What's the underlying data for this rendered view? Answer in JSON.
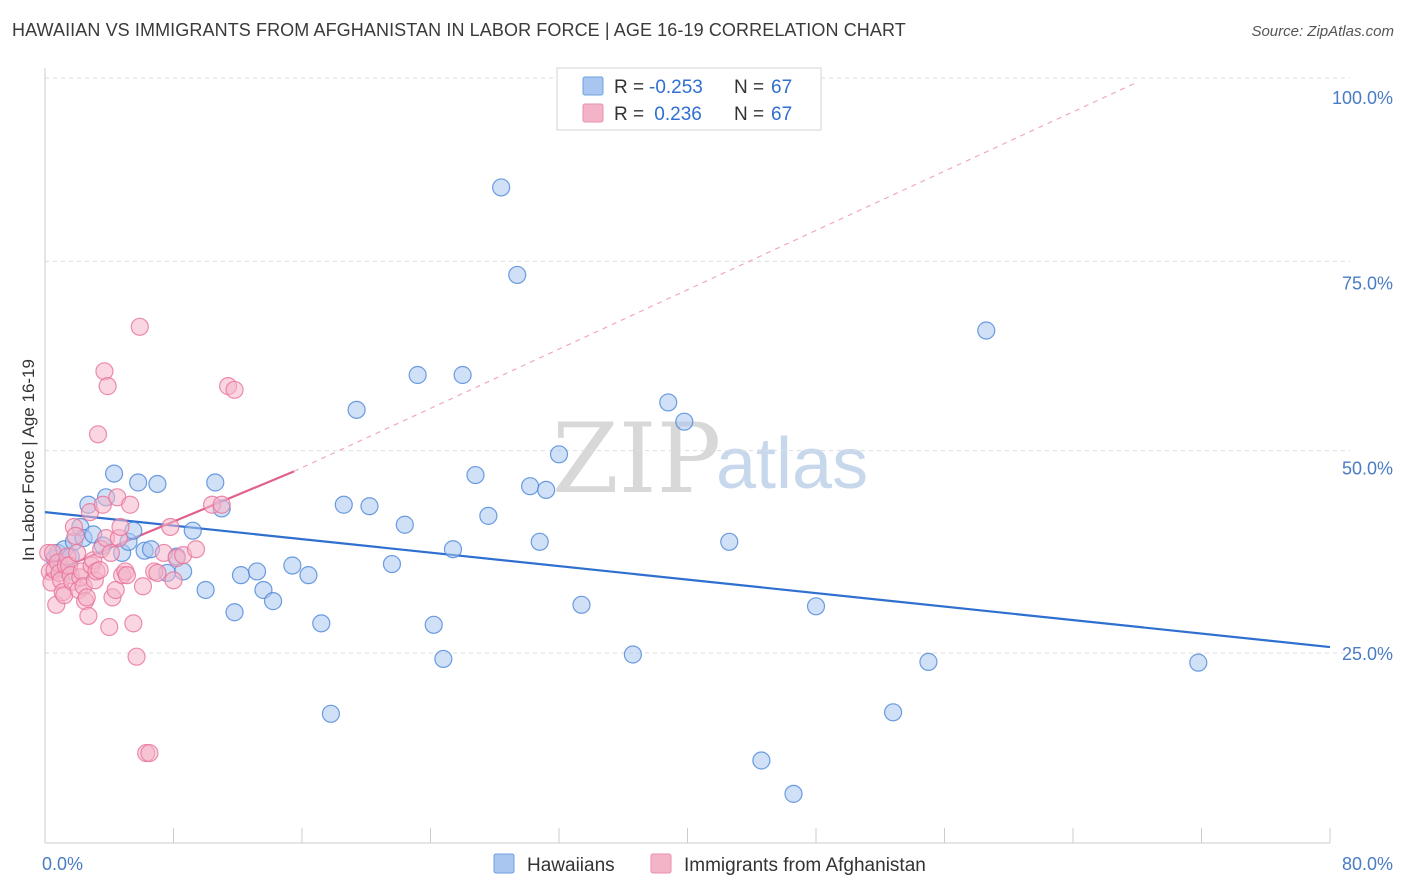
{
  "title": "HAWAIIAN VS IMMIGRANTS FROM AFGHANISTAN IN LABOR FORCE | AGE 16-19 CORRELATION CHART",
  "source": "Source: ZipAtlas.com",
  "watermark": {
    "zip": "ZIP",
    "atlas": "atlas"
  },
  "legend_top": {
    "rows": [
      {
        "r_label": "R = ",
        "r_value": "-0.253",
        "n_label": "N = ",
        "n_value": "67",
        "color": "#a9c6f0"
      },
      {
        "r_label": "R = ",
        "r_value": " 0.236",
        "n_label": "N = ",
        "n_value": "67",
        "color": "#f4b4c8"
      }
    ]
  },
  "legend_bottom": [
    {
      "label": "Hawaiians",
      "color": "#a9c6f0"
    },
    {
      "label": "Immigrants from Afghanistan",
      "color": "#f4b4c8"
    }
  ],
  "chart_data": {
    "type": "scatter",
    "title": "HAWAIIAN VS IMMIGRANTS FROM AFGHANISTAN IN LABOR FORCE | AGE 16-19 CORRELATION CHART",
    "xlabel": "",
    "ylabel": "In Labor Force | Age 16-19",
    "xlim": [
      0,
      80
    ],
    "ylim": [
      0,
      105
    ],
    "x_tick_labels": [
      "0.0%",
      "80.0%"
    ],
    "y_ticks": [
      25,
      50,
      75,
      100
    ],
    "y_tick_labels": [
      "25.0%",
      "50.0%",
      "75.0%",
      "100.0%"
    ],
    "grid": true,
    "legend_position": "top-center",
    "series": [
      {
        "name": "Hawaiians",
        "color": "#4a86d8",
        "fill": "#a9c6f0",
        "trend": {
          "x": [
            0,
            80
          ],
          "y": [
            44.0,
            25.8
          ],
          "style": "solid",
          "color": "#2f6fd0"
        },
        "x": [
          0.6,
          0.8,
          1.0,
          1.2,
          1.4,
          1.6,
          1.8,
          2.2,
          2.4,
          2.7,
          3.0,
          3.6,
          3.8,
          4.3,
          4.8,
          5.2,
          5.5,
          5.8,
          6.2,
          6.6,
          7.0,
          7.6,
          8.2,
          8.6,
          9.2,
          10.0,
          10.6,
          11.0,
          11.8,
          12.2,
          13.2,
          13.6,
          14.2,
          15.4,
          16.4,
          17.2,
          17.8,
          18.6,
          19.4,
          20.2,
          21.6,
          22.4,
          23.2,
          24.2,
          24.8,
          25.4,
          26.0,
          26.8,
          27.6,
          28.4,
          29.4,
          30.2,
          30.8,
          31.2,
          32.0,
          33.4,
          36.6,
          38.8,
          39.8,
          42.6,
          44.6,
          46.6,
          48.0,
          52.8,
          55.0,
          58.6,
          71.8
        ],
        "y": [
          37.8,
          38.5,
          36.5,
          39.0,
          36.0,
          38.0,
          40.0,
          42.0,
          40.5,
          45.0,
          41.0,
          39.5,
          46.0,
          49.2,
          38.5,
          40.0,
          41.5,
          48.0,
          38.8,
          39.0,
          47.8,
          35.8,
          38.0,
          36.0,
          41.5,
          33.5,
          48.0,
          44.5,
          30.5,
          35.5,
          36.0,
          33.5,
          32.0,
          36.8,
          35.5,
          29.0,
          16.8,
          45.0,
          57.8,
          44.8,
          37.0,
          42.3,
          62.5,
          28.8,
          24.2,
          39.0,
          62.5,
          49.0,
          43.5,
          87.8,
          76.0,
          47.5,
          40.0,
          47.0,
          51.8,
          31.5,
          24.8,
          58.8,
          56.2,
          40.0,
          10.5,
          6.0,
          31.3,
          17.0,
          23.8,
          68.5,
          23.7
        ],
        "x_override": [
          0.6,
          0.8,
          1.0,
          1.2,
          1.4,
          1.6,
          1.8,
          2.2,
          2.4,
          2.7,
          3.0,
          3.6,
          3.8,
          4.3,
          4.8,
          5.2,
          5.5,
          5.8,
          6.2,
          6.6,
          7.0,
          7.6,
          8.2,
          8.6,
          9.2,
          10.0,
          10.6,
          11.0,
          11.8,
          12.2,
          13.2,
          13.6,
          14.2,
          15.4,
          16.4,
          17.2,
          17.8,
          18.6,
          19.4,
          20.2,
          21.6,
          22.4,
          23.2,
          24.2,
          24.8,
          25.4,
          26.0,
          26.8,
          27.6,
          28.4,
          29.4,
          30.2,
          30.8,
          31.2,
          32.0,
          33.4,
          36.6,
          38.8,
          39.8,
          42.6,
          44.6,
          46.6,
          48.0,
          52.8,
          55.0,
          58.6,
          71.8
        ]
      },
      {
        "name": "Immigrants from Afghanistan",
        "color": "#e8729a",
        "fill": "#f4b4c8",
        "trend": {
          "x": [
            0,
            15.5
          ],
          "y": [
            35.5,
            49.5
          ],
          "style": "solid",
          "color": "#e0608e",
          "dashed_extension": {
            "x": [
              15.5,
              68
            ],
            "y": [
              49.5,
              102
            ]
          }
        },
        "x": [
          0.2,
          0.3,
          0.4,
          0.5,
          0.6,
          0.7,
          0.8,
          0.9,
          1.0,
          1.1,
          1.2,
          1.3,
          1.4,
          1.5,
          1.6,
          1.7,
          1.8,
          1.9,
          2.0,
          2.1,
          2.2,
          2.3,
          2.4,
          2.5,
          2.6,
          2.7,
          2.8,
          2.9,
          3.0,
          3.1,
          3.2,
          3.3,
          3.4,
          3.5,
          3.6,
          3.7,
          3.8,
          3.9,
          4.0,
          4.1,
          4.2,
          4.4,
          4.5,
          4.6,
          4.7,
          4.8,
          5.0,
          5.1,
          5.3,
          5.5,
          5.7,
          5.9,
          6.1,
          6.3,
          6.5,
          6.8,
          7.0,
          7.4,
          7.8,
          8.0,
          8.2,
          8.6,
          9.4,
          10.4,
          11.0,
          11.4,
          11.8
        ],
        "y": [
          38.5,
          36.0,
          34.5,
          38.5,
          36.2,
          31.5,
          37.2,
          35.8,
          34.8,
          33.2,
          32.8,
          36.8,
          38.0,
          36.8,
          35.5,
          34.6,
          42.0,
          40.8,
          38.5,
          33.5,
          35.2,
          36.0,
          34.0,
          32.0,
          32.5,
          30.0,
          44.0,
          36.8,
          37.5,
          34.8,
          36.0,
          54.5,
          36.2,
          39.0,
          45.0,
          63.0,
          40.5,
          61.0,
          28.5,
          38.5,
          32.5,
          33.5,
          46.0,
          40.5,
          42.0,
          35.5,
          36.0,
          35.5,
          45.0,
          29.0,
          24.5,
          69.0,
          34.0,
          11.5,
          11.5,
          36.0,
          35.8,
          38.5,
          42.0,
          34.8,
          37.8,
          38.2,
          39.0,
          45.0,
          45.0,
          61.0,
          60.5
        ],
        "x_override": [
          0.2,
          0.3,
          0.4,
          0.5,
          0.6,
          0.7,
          0.8,
          0.9,
          1.0,
          1.1,
          1.2,
          1.3,
          1.4,
          1.5,
          1.6,
          1.7,
          1.8,
          1.9,
          2.0,
          2.1,
          2.2,
          2.3,
          2.4,
          2.5,
          2.6,
          2.7,
          2.8,
          2.9,
          3.0,
          3.1,
          3.2,
          3.3,
          3.4,
          3.5,
          3.6,
          3.7,
          3.8,
          3.9,
          4.0,
          4.1,
          4.2,
          4.4,
          4.5,
          4.6,
          4.7,
          4.8,
          5.0,
          5.1,
          5.3,
          5.5,
          5.7,
          5.9,
          6.1,
          6.3,
          6.5,
          6.8,
          7.0,
          7.4,
          7.8,
          8.0,
          8.2,
          8.6,
          9.4,
          10.4,
          11.0,
          11.4,
          11.8
        ]
      }
    ]
  }
}
